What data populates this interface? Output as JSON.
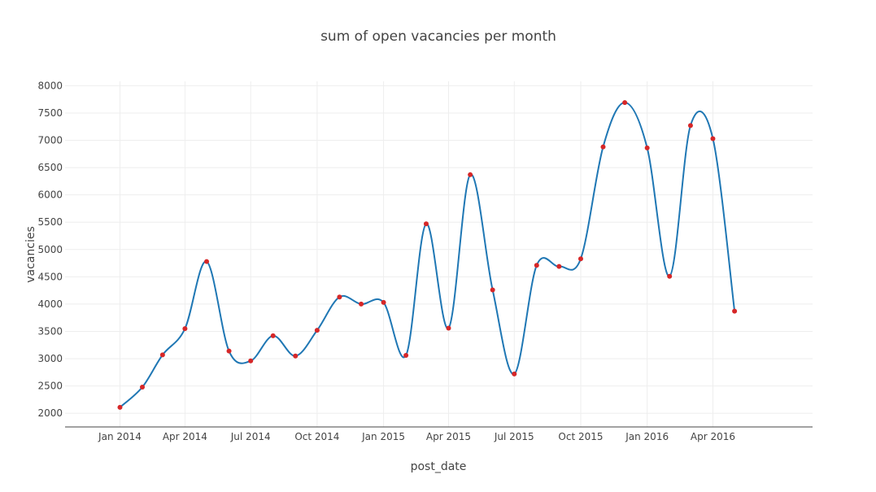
{
  "chart_data": {
    "type": "line",
    "title": "sum of open vacancies  per month",
    "xlabel": "post_date",
    "ylabel": "vacancies",
    "grid": true,
    "line_shape": "spline",
    "x": [
      "2014-01",
      "2014-02",
      "2014-03",
      "2014-04",
      "2014-05",
      "2014-06",
      "2014-07",
      "2014-08",
      "2014-09",
      "2014-10",
      "2014-11",
      "2014-12",
      "2015-01",
      "2015-02",
      "2015-03",
      "2015-04",
      "2015-05",
      "2015-06",
      "2015-07",
      "2015-08",
      "2015-09",
      "2015-10",
      "2015-11",
      "2015-12",
      "2016-01",
      "2016-02",
      "2016-03",
      "2016-04",
      "2016-05"
    ],
    "series": [
      {
        "values": [
          2110,
          2480,
          3070,
          3550,
          4780,
          3140,
          2960,
          3420,
          3050,
          3520,
          4130,
          4000,
          4030,
          3060,
          5470,
          3560,
          6370,
          4260,
          2720,
          4710,
          4690,
          4830,
          6880,
          7690,
          6860,
          4510,
          7270,
          7030,
          3870
        ],
        "line_color": "#1f77b4",
        "marker_color": "#d62728"
      }
    ],
    "x_ticks": [
      "Jan 2014",
      "Apr 2014",
      "Jul 2014",
      "Oct 2014",
      "Jan 2015",
      "Apr 2015",
      "Jul 2015",
      "Oct 2015",
      "Jan 2016",
      "Apr 2016"
    ],
    "x_tick_dates": [
      "2014-01",
      "2014-04",
      "2014-07",
      "2014-10",
      "2015-01",
      "2015-04",
      "2015-07",
      "2015-10",
      "2016-01",
      "2016-04"
    ],
    "x_range": [
      "2013-10-17",
      "2016-08-17"
    ],
    "y_ticks": [
      2000,
      2500,
      3000,
      3500,
      4000,
      4500,
      5000,
      5500,
      6000,
      6500,
      7000,
      7500,
      8000
    ],
    "ylim": [
      1750,
      8080
    ]
  }
}
